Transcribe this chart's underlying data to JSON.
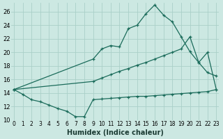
{
  "xlabel": "Humidex (Indice chaleur)",
  "bg_color": "#cce8e2",
  "grid_color": "#aad0c8",
  "line_color": "#1a6b5a",
  "xlim": [
    -0.3,
    23.3
  ],
  "ylim": [
    10,
    27.3
  ],
  "yticks": [
    10,
    12,
    14,
    16,
    18,
    20,
    22,
    24,
    26
  ],
  "xticks": [
    0,
    1,
    2,
    3,
    4,
    5,
    6,
    7,
    8,
    9,
    10,
    11,
    12,
    13,
    14,
    15,
    16,
    17,
    18,
    19,
    20,
    21,
    22,
    23
  ],
  "curve_low_x": [
    0,
    1,
    2,
    3,
    4,
    5,
    6,
    7,
    8,
    9,
    10,
    11,
    12,
    13,
    14,
    15,
    16,
    17,
    18,
    19,
    20,
    21,
    22,
    23
  ],
  "curve_low_y": [
    14.5,
    13.8,
    13.0,
    12.7,
    12.2,
    11.7,
    11.3,
    10.5,
    10.5,
    13.0,
    13.1,
    13.2,
    13.3,
    13.4,
    13.5,
    13.5,
    13.6,
    13.7,
    13.8,
    13.9,
    14.0,
    14.1,
    14.2,
    14.5
  ],
  "curve_upper_x": [
    0,
    9,
    10,
    11,
    12,
    13,
    14,
    15,
    16,
    17,
    18,
    19,
    20,
    21,
    22,
    23
  ],
  "curve_upper_y": [
    14.5,
    19.0,
    20.5,
    21.0,
    20.8,
    23.5,
    24.0,
    25.7,
    27.0,
    25.5,
    24.5,
    22.3,
    20.1,
    18.5,
    17.0,
    16.5
  ],
  "curve_diag_x": [
    0,
    9,
    10,
    11,
    12,
    13,
    14,
    15,
    16,
    17,
    18,
    19,
    20,
    21,
    22,
    23
  ],
  "curve_diag_y": [
    14.5,
    15.7,
    16.2,
    16.7,
    17.2,
    17.6,
    18.1,
    18.5,
    19.0,
    19.5,
    20.0,
    20.5,
    22.3,
    18.5,
    20.0,
    14.5
  ]
}
